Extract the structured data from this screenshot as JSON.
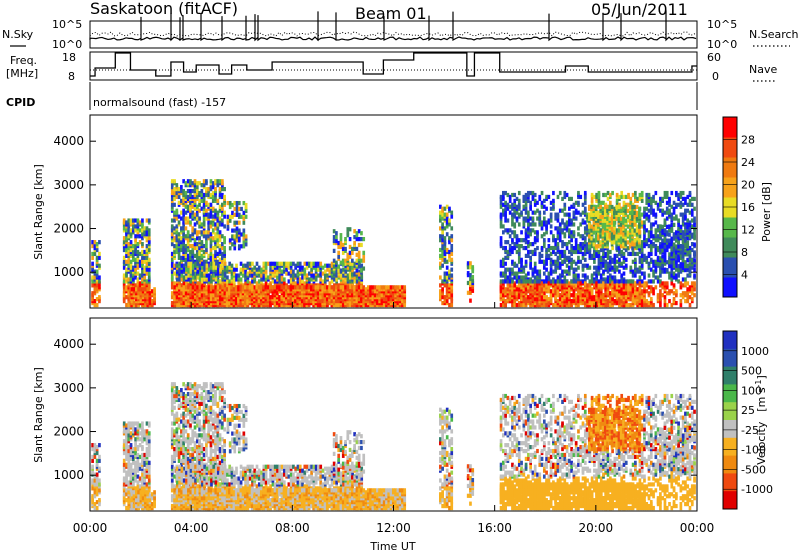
{
  "header": {
    "station": "Saskatoon (fitACF)",
    "beam": "Beam 01",
    "date": "05/Jun/2011"
  },
  "sky_panel": {
    "left_label": "N.Sky",
    "right_label": "N.Search",
    "left_ticks": [
      "10^5",
      "10^0"
    ],
    "right_ticks": [
      "10^5",
      "10^0"
    ]
  },
  "freq_panel": {
    "left_label_line1": "Freq.",
    "left_label_line2": "[MHz]",
    "right_label": "Nave",
    "left_ticks": [
      "18",
      "8"
    ],
    "right_ticks": [
      "60",
      "0"
    ]
  },
  "cpid_panel": {
    "label": "CPID",
    "text": "normalsound (fast) -157"
  },
  "colors": {
    "power_scale": [
      "#1010ff",
      "#2a4fb0",
      "#3f8a5a",
      "#57b84a",
      "#e8dc25",
      "#f7a21a",
      "#f07a10",
      "#f04a10",
      "#ff0000"
    ],
    "velocity_scale": [
      "#e00000",
      "#f04a10",
      "#f08a10",
      "#f7b020",
      "#c0c0c0",
      "#9ad24a",
      "#4ab84a",
      "#2f7f6a",
      "#2a4fb0",
      "#2030c0"
    ]
  },
  "chart_data": [
    {
      "type": "heatmap",
      "name": "power",
      "ylabel": "Slant Range [km]",
      "yticks": [
        1000,
        2000,
        3000,
        4000
      ],
      "ylim": [
        180,
        4600
      ],
      "xlim": [
        0,
        24
      ],
      "colorbar_label": "Power [dB]",
      "colorbar_ticks": [
        "4",
        "8",
        "12",
        "16",
        "20",
        "24",
        "28"
      ],
      "colorbar_range": [
        0,
        30
      ]
    },
    {
      "type": "heatmap",
      "name": "velocity",
      "ylabel": "Slant Range [km]",
      "yticks": [
        1000,
        2000,
        3000,
        4000
      ],
      "ylim": [
        180,
        4600
      ],
      "xlim": [
        0,
        24
      ],
      "xlabel": "Time UT",
      "xticks": [
        "00:00",
        "04:00",
        "08:00",
        "12:00",
        "16:00",
        "20:00",
        "00:00"
      ],
      "colorbar_label_main": "Velocity",
      "colorbar_label_unit": "[m s",
      "colorbar_label_exp": "-1",
      "colorbar_ticks": [
        "1000",
        "500",
        "100",
        "25",
        "-25",
        "-100",
        "-500",
        "-1000"
      ]
    }
  ]
}
